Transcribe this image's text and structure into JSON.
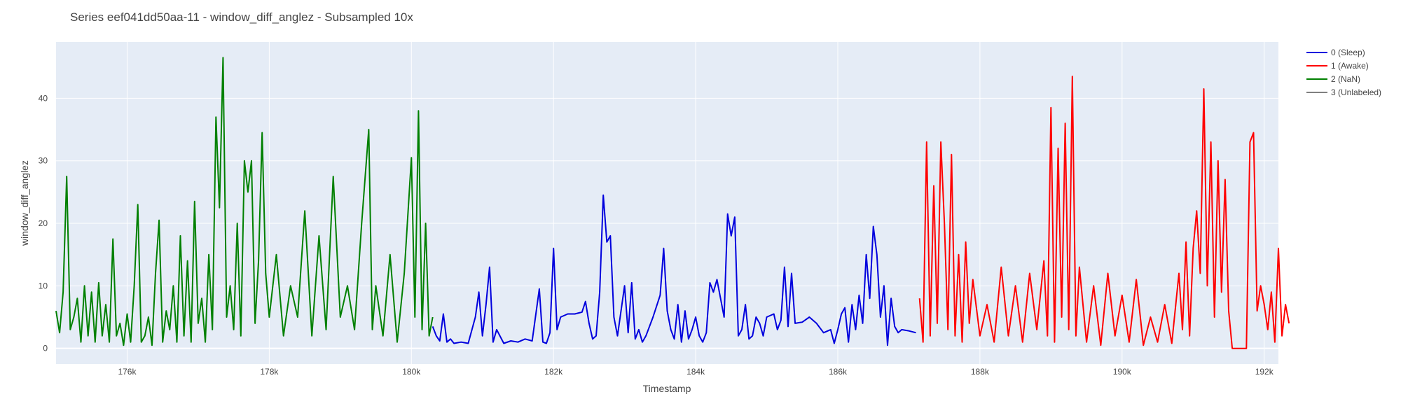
{
  "chart_data": {
    "type": "line",
    "title": "Series eef041dd50aa-11 - window_diff_anglez - Subsampled 10x",
    "xlabel": "Timestamp",
    "ylabel": "window_diff_anglez",
    "xlim": [
      175000,
      192200
    ],
    "ylim": [
      -2.5,
      49
    ],
    "x_ticks": [
      176000,
      178000,
      180000,
      182000,
      184000,
      186000,
      188000,
      190000,
      192000
    ],
    "x_tick_labels": [
      "176k",
      "178k",
      "180k",
      "182k",
      "184k",
      "186k",
      "188k",
      "190k",
      "192k"
    ],
    "y_ticks": [
      0,
      10,
      20,
      30,
      40
    ],
    "y_tick_labels": [
      "0",
      "10",
      "20",
      "30",
      "40"
    ],
    "grid": true,
    "legend_position": "right",
    "series": [
      {
        "name": "0 (Sleep)",
        "color": "#0000dd",
        "points": [
          [
            180300,
            3.5
          ],
          [
            180350,
            2
          ],
          [
            180400,
            1.2
          ],
          [
            180450,
            5.5
          ],
          [
            180500,
            1
          ],
          [
            180550,
            1.5
          ],
          [
            180600,
            0.8
          ],
          [
            180700,
            1
          ],
          [
            180800,
            0.8
          ],
          [
            180900,
            5
          ],
          [
            180950,
            9
          ],
          [
            181000,
            2
          ],
          [
            181050,
            7
          ],
          [
            181100,
            13
          ],
          [
            181150,
            1
          ],
          [
            181200,
            3
          ],
          [
            181300,
            0.8
          ],
          [
            181400,
            1.2
          ],
          [
            181500,
            1
          ],
          [
            181600,
            1.5
          ],
          [
            181700,
            1.2
          ],
          [
            181800,
            9.5
          ],
          [
            181850,
            1
          ],
          [
            181900,
            0.8
          ],
          [
            181950,
            2.5
          ],
          [
            182000,
            16
          ],
          [
            182050,
            3
          ],
          [
            182100,
            5
          ],
          [
            182200,
            5.5
          ],
          [
            182300,
            5.5
          ],
          [
            182400,
            5.8
          ],
          [
            182450,
            7.5
          ],
          [
            182500,
            4
          ],
          [
            182550,
            1.5
          ],
          [
            182600,
            2
          ],
          [
            182650,
            9
          ],
          [
            182700,
            24.5
          ],
          [
            182750,
            17
          ],
          [
            182800,
            18
          ],
          [
            182850,
            5
          ],
          [
            182900,
            2
          ],
          [
            183000,
            10
          ],
          [
            183050,
            2.5
          ],
          [
            183100,
            10.5
          ],
          [
            183150,
            1.5
          ],
          [
            183200,
            3
          ],
          [
            183250,
            1
          ],
          [
            183300,
            2
          ],
          [
            183400,
            5
          ],
          [
            183500,
            8.5
          ],
          [
            183550,
            16
          ],
          [
            183600,
            6
          ],
          [
            183650,
            3
          ],
          [
            183700,
            1.5
          ],
          [
            183750,
            7
          ],
          [
            183800,
            1
          ],
          [
            183850,
            6
          ],
          [
            183900,
            1.5
          ],
          [
            183950,
            3
          ],
          [
            184000,
            5
          ],
          [
            184050,
            2
          ],
          [
            184100,
            1
          ],
          [
            184150,
            2.5
          ],
          [
            184200,
            10.5
          ],
          [
            184250,
            9
          ],
          [
            184300,
            11
          ],
          [
            184350,
            8
          ],
          [
            184400,
            5
          ],
          [
            184450,
            21.5
          ],
          [
            184500,
            18
          ],
          [
            184550,
            21
          ],
          [
            184600,
            2
          ],
          [
            184650,
            3
          ],
          [
            184700,
            7
          ],
          [
            184750,
            1.5
          ],
          [
            184800,
            2
          ],
          [
            184850,
            5
          ],
          [
            184900,
            4
          ],
          [
            184950,
            2
          ],
          [
            185000,
            5
          ],
          [
            185100,
            5.5
          ],
          [
            185150,
            3
          ],
          [
            185200,
            4.5
          ],
          [
            185250,
            13
          ],
          [
            185300,
            3.5
          ],
          [
            185350,
            12
          ],
          [
            185400,
            4
          ],
          [
            185500,
            4.2
          ],
          [
            185600,
            5
          ],
          [
            185700,
            4
          ],
          [
            185800,
            2.5
          ],
          [
            185900,
            3
          ],
          [
            185950,
            0.8
          ],
          [
            186000,
            3
          ],
          [
            186050,
            5.5
          ],
          [
            186100,
            6.5
          ],
          [
            186150,
            1
          ],
          [
            186200,
            7
          ],
          [
            186250,
            3
          ],
          [
            186300,
            8.5
          ],
          [
            186350,
            4
          ],
          [
            186400,
            15
          ],
          [
            186450,
            8
          ],
          [
            186500,
            19.5
          ],
          [
            186550,
            15
          ],
          [
            186600,
            5
          ],
          [
            186650,
            10
          ],
          [
            186700,
            0.5
          ],
          [
            186750,
            8
          ],
          [
            186800,
            3.5
          ],
          [
            186850,
            2.5
          ],
          [
            186900,
            3
          ],
          [
            187000,
            2.8
          ],
          [
            187100,
            2.5
          ]
        ]
      },
      {
        "name": "1 (Awake)",
        "color": "#ff0000",
        "points": [
          [
            187150,
            8
          ],
          [
            187200,
            1
          ],
          [
            187250,
            33
          ],
          [
            187300,
            2
          ],
          [
            187350,
            26
          ],
          [
            187400,
            4
          ],
          [
            187450,
            33
          ],
          [
            187500,
            20
          ],
          [
            187550,
            3
          ],
          [
            187600,
            31
          ],
          [
            187650,
            2
          ],
          [
            187700,
            15
          ],
          [
            187750,
            1
          ],
          [
            187800,
            17
          ],
          [
            187850,
            4
          ],
          [
            187900,
            11
          ],
          [
            188000,
            2
          ],
          [
            188100,
            7
          ],
          [
            188200,
            1
          ],
          [
            188300,
            13
          ],
          [
            188400,
            2
          ],
          [
            188500,
            10
          ],
          [
            188600,
            1
          ],
          [
            188700,
            12
          ],
          [
            188800,
            3
          ],
          [
            188900,
            14
          ],
          [
            188950,
            2
          ],
          [
            189000,
            38.5
          ],
          [
            189050,
            1
          ],
          [
            189100,
            32
          ],
          [
            189150,
            5
          ],
          [
            189200,
            36
          ],
          [
            189250,
            3
          ],
          [
            189300,
            43.5
          ],
          [
            189350,
            2
          ],
          [
            189400,
            13
          ],
          [
            189500,
            1
          ],
          [
            189600,
            10
          ],
          [
            189700,
            0.5
          ],
          [
            189800,
            12
          ],
          [
            189900,
            2
          ],
          [
            190000,
            8.5
          ],
          [
            190100,
            1
          ],
          [
            190200,
            11
          ],
          [
            190300,
            0.5
          ],
          [
            190400,
            5
          ],
          [
            190500,
            1
          ],
          [
            190600,
            7
          ],
          [
            190700,
            0.8
          ],
          [
            190800,
            12
          ],
          [
            190850,
            3
          ],
          [
            190900,
            17
          ],
          [
            190950,
            2
          ],
          [
            191000,
            16
          ],
          [
            191050,
            22
          ],
          [
            191100,
            12
          ],
          [
            191150,
            41.5
          ],
          [
            191200,
            10
          ],
          [
            191250,
            33
          ],
          [
            191300,
            5
          ],
          [
            191350,
            30
          ],
          [
            191400,
            9
          ],
          [
            191450,
            27
          ],
          [
            191500,
            6
          ],
          [
            191550,
            0
          ],
          [
            191750,
            0
          ],
          [
            191800,
            33
          ],
          [
            191850,
            34.5
          ],
          [
            191900,
            6
          ],
          [
            191950,
            10
          ],
          [
            192000,
            7
          ],
          [
            192050,
            3
          ],
          [
            192100,
            9
          ],
          [
            192150,
            1
          ],
          [
            192200,
            16
          ],
          [
            192250,
            2
          ],
          [
            192300,
            7
          ],
          [
            192350,
            4
          ]
        ]
      },
      {
        "name": "2 (NaN)",
        "color": "#008000",
        "points": [
          [
            175000,
            6
          ],
          [
            175050,
            2.5
          ],
          [
            175100,
            9
          ],
          [
            175150,
            27.5
          ],
          [
            175200,
            3
          ],
          [
            175250,
            5
          ],
          [
            175300,
            8
          ],
          [
            175350,
            1
          ],
          [
            175400,
            10
          ],
          [
            175450,
            2
          ],
          [
            175500,
            9
          ],
          [
            175550,
            1
          ],
          [
            175600,
            10.5
          ],
          [
            175650,
            2
          ],
          [
            175700,
            7
          ],
          [
            175750,
            1
          ],
          [
            175800,
            17.5
          ],
          [
            175850,
            2
          ],
          [
            175900,
            4
          ],
          [
            175950,
            0.5
          ],
          [
            176000,
            5.5
          ],
          [
            176050,
            1
          ],
          [
            176100,
            10
          ],
          [
            176150,
            23
          ],
          [
            176200,
            1
          ],
          [
            176250,
            2
          ],
          [
            176300,
            5
          ],
          [
            176350,
            0.5
          ],
          [
            176400,
            12
          ],
          [
            176450,
            20.5
          ],
          [
            176500,
            1
          ],
          [
            176550,
            6
          ],
          [
            176600,
            3
          ],
          [
            176650,
            10
          ],
          [
            176700,
            1
          ],
          [
            176750,
            18
          ],
          [
            176800,
            2
          ],
          [
            176850,
            14
          ],
          [
            176900,
            1
          ],
          [
            176950,
            23.5
          ],
          [
            177000,
            4
          ],
          [
            177050,
            8
          ],
          [
            177100,
            1
          ],
          [
            177150,
            15
          ],
          [
            177200,
            3
          ],
          [
            177250,
            37
          ],
          [
            177300,
            22.5
          ],
          [
            177350,
            46.5
          ],
          [
            177400,
            5
          ],
          [
            177450,
            10
          ],
          [
            177500,
            3
          ],
          [
            177550,
            20
          ],
          [
            177600,
            2
          ],
          [
            177650,
            30
          ],
          [
            177700,
            25
          ],
          [
            177750,
            30
          ],
          [
            177800,
            4
          ],
          [
            177850,
            14
          ],
          [
            177900,
            34.5
          ],
          [
            177950,
            12
          ],
          [
            178000,
            5
          ],
          [
            178100,
            15
          ],
          [
            178200,
            2
          ],
          [
            178300,
            10
          ],
          [
            178400,
            5
          ],
          [
            178500,
            22
          ],
          [
            178600,
            2
          ],
          [
            178700,
            18
          ],
          [
            178800,
            3
          ],
          [
            178900,
            27.5
          ],
          [
            179000,
            5
          ],
          [
            179100,
            10
          ],
          [
            179200,
            3
          ],
          [
            179300,
            20
          ],
          [
            179400,
            35
          ],
          [
            179450,
            3
          ],
          [
            179500,
            10
          ],
          [
            179600,
            2
          ],
          [
            179700,
            15
          ],
          [
            179800,
            1
          ],
          [
            179900,
            12
          ],
          [
            180000,
            30.5
          ],
          [
            180050,
            5
          ],
          [
            180100,
            38
          ],
          [
            180150,
            3
          ],
          [
            180200,
            20
          ],
          [
            180250,
            2
          ],
          [
            180300,
            5
          ]
        ]
      },
      {
        "name": "3 (Unlabeled)",
        "color": "#808080",
        "points": []
      }
    ]
  }
}
